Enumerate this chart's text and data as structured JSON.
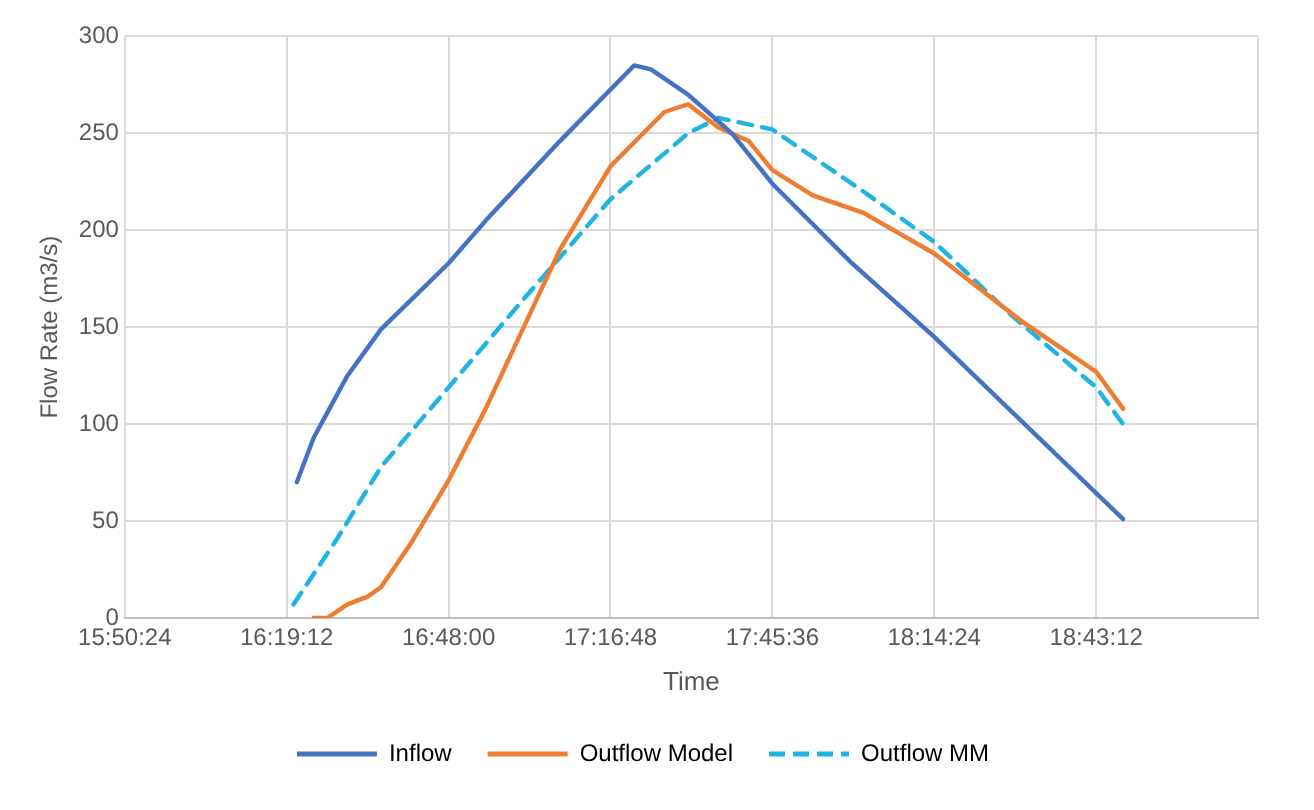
{
  "chart_data": {
    "type": "line",
    "xlabel": "Time",
    "ylabel": "Flow Rate (m3/s)",
    "xlim": [
      15.84,
      19.2
    ],
    "xticks": [
      {
        "value": 15.84,
        "label": "15:50:24"
      },
      {
        "value": 16.32,
        "label": "16:19:12"
      },
      {
        "value": 16.8,
        "label": "16:48:00"
      },
      {
        "value": 17.28,
        "label": "17:16:48"
      },
      {
        "value": 17.76,
        "label": "17:45:36"
      },
      {
        "value": 18.24,
        "label": "18:14:24"
      },
      {
        "value": 18.72,
        "label": "18:43:12"
      },
      {
        "value": 19.2,
        "label": null
      }
    ],
    "ylim": [
      0,
      300
    ],
    "yticks": [
      0,
      50,
      100,
      150,
      200,
      250,
      300
    ],
    "grid": true,
    "legend": "bottom",
    "marker": "none",
    "series": [
      {
        "name": "Inflow",
        "color": "#4472c4",
        "line_style": "solid",
        "x": [
          16.35,
          16.4,
          16.5,
          16.6,
          16.8,
          16.91,
          17.13,
          17.35,
          17.4,
          17.51,
          17.64,
          17.76,
          17.99,
          18.24,
          18.8
        ],
        "values": [
          70,
          93,
          125,
          149,
          183,
          205,
          246,
          285,
          283,
          270,
          250,
          224,
          184,
          145,
          51
        ]
      },
      {
        "name": "Outflow Model",
        "color": "#ed7d31",
        "line_style": "solid",
        "x": [
          16.4,
          16.44,
          16.5,
          16.56,
          16.6,
          16.69,
          16.8,
          16.91,
          17.02,
          17.13,
          17.28,
          17.44,
          17.51,
          17.6,
          17.69,
          17.76,
          17.88,
          18.03,
          18.24,
          18.5,
          18.72,
          18.8
        ],
        "values": [
          0,
          0,
          7,
          11,
          16,
          39,
          71,
          108,
          149,
          190,
          233,
          261,
          265,
          253,
          246,
          231,
          218,
          209,
          188,
          153,
          127,
          108
        ]
      },
      {
        "name": "Outflow MM",
        "color": "#1fb4e3",
        "line_style": "dashed",
        "x": [
          16.34,
          16.47,
          16.6,
          16.8,
          17.02,
          17.28,
          17.51,
          17.6,
          17.76,
          18.03,
          18.24,
          18.47,
          18.72,
          18.8
        ],
        "values": [
          7,
          41,
          78,
          119,
          164,
          216,
          250,
          258,
          252,
          220,
          194,
          156,
          119,
          100
        ]
      }
    ]
  }
}
